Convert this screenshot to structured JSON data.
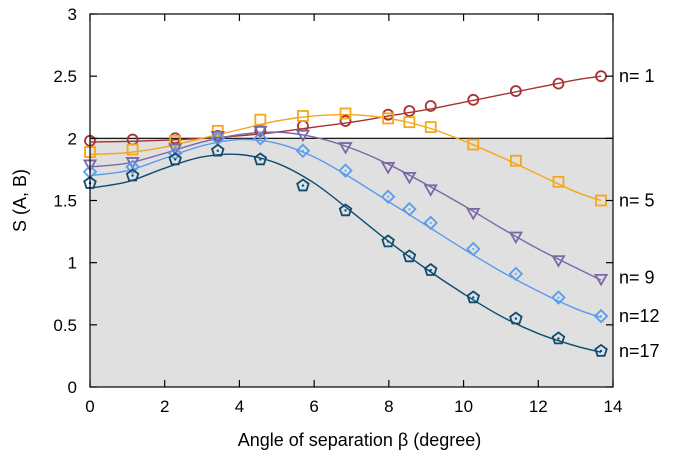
{
  "chart_data": {
    "type": "line",
    "xlabel": "Angle of separation β (degree)",
    "ylabel": "S (A, B)",
    "xlim": [
      0,
      14
    ],
    "ylim": [
      0,
      3
    ],
    "xticks": [
      "0",
      "2",
      "4",
      "6",
      "8",
      "10",
      "12",
      "14"
    ],
    "yticks": [
      "0",
      "0.5",
      "1",
      "1.5",
      "2",
      "2.5",
      "3"
    ],
    "grid": false,
    "legend": "none",
    "shaded_region": {
      "from": 0,
      "to": 2,
      "color": "#e0e0e0"
    },
    "reference_line": 2,
    "series": [
      {
        "name": "n= 1",
        "color": "#a83232",
        "marker": "circle",
        "x": [
          0,
          1.14,
          2.28,
          3.42,
          4.56,
          5.7,
          6.84,
          7.98,
          8.55,
          9.12,
          10.26,
          11.4,
          12.54,
          13.68
        ],
        "values": [
          1.98,
          1.99,
          2.0,
          2.02,
          2.06,
          2.1,
          2.14,
          2.19,
          2.22,
          2.26,
          2.31,
          2.38,
          2.44,
          2.5
        ],
        "curve_x": [
          0,
          1,
          2,
          3,
          4,
          5,
          6,
          7,
          8,
          9,
          10,
          11,
          12,
          13,
          13.68
        ],
        "curve_y": [
          1.97,
          1.975,
          1.985,
          2.0,
          2.02,
          2.05,
          2.09,
          2.13,
          2.18,
          2.23,
          2.29,
          2.35,
          2.41,
          2.47,
          2.5
        ]
      },
      {
        "name": "n= 5",
        "color": "#f4a71c",
        "marker": "square",
        "x": [
          0,
          1.14,
          2.28,
          3.42,
          4.56,
          5.7,
          6.84,
          7.98,
          8.55,
          9.12,
          10.26,
          11.4,
          12.54,
          13.68
        ],
        "values": [
          1.89,
          1.91,
          1.98,
          2.06,
          2.15,
          2.18,
          2.2,
          2.16,
          2.13,
          2.09,
          1.95,
          1.82,
          1.65,
          1.5
        ],
        "curve_x": [
          0,
          1,
          2,
          3,
          4,
          5,
          6,
          7,
          8,
          9,
          10,
          11,
          12,
          13,
          13.68
        ],
        "curve_y": [
          1.87,
          1.885,
          1.93,
          2.0,
          2.07,
          2.14,
          2.18,
          2.19,
          2.16,
          2.09,
          1.98,
          1.85,
          1.71,
          1.57,
          1.5
        ]
      },
      {
        "name": "n= 9",
        "color": "#7b68a8",
        "marker": "triangle-down",
        "x": [
          0,
          1.14,
          2.28,
          3.42,
          4.56,
          5.7,
          6.84,
          7.98,
          8.55,
          9.12,
          10.26,
          11.4,
          12.54,
          13.68
        ],
        "values": [
          1.8,
          1.82,
          1.93,
          2.03,
          2.07,
          2.04,
          1.94,
          1.78,
          1.7,
          1.6,
          1.41,
          1.22,
          1.03,
          0.88
        ],
        "curve_x": [
          0,
          1,
          2,
          3,
          4,
          5,
          6,
          7,
          8,
          9,
          10,
          11,
          12,
          13,
          13.68
        ],
        "curve_y": [
          1.77,
          1.8,
          1.88,
          1.97,
          2.03,
          2.05,
          2.01,
          1.92,
          1.79,
          1.63,
          1.46,
          1.28,
          1.11,
          0.96,
          0.86
        ]
      },
      {
        "name": "n=12",
        "color": "#5b9bec",
        "marker": "diamond",
        "x": [
          0,
          1.14,
          2.28,
          3.42,
          4.56,
          5.7,
          6.84,
          7.98,
          8.55,
          9.12,
          10.26,
          11.4,
          12.54,
          13.68
        ],
        "values": [
          1.73,
          1.77,
          1.88,
          2.0,
          2.0,
          1.9,
          1.74,
          1.53,
          1.43,
          1.32,
          1.11,
          0.91,
          0.72,
          0.57
        ],
        "curve_x": [
          0,
          1,
          2,
          3,
          4,
          5,
          6,
          7,
          8,
          9,
          10,
          11,
          12,
          13,
          13.68
        ],
        "curve_y": [
          1.7,
          1.74,
          1.84,
          1.94,
          1.99,
          1.96,
          1.85,
          1.68,
          1.49,
          1.3,
          1.11,
          0.93,
          0.77,
          0.63,
          0.56
        ]
      },
      {
        "name": "n=17",
        "color": "#0f4c70",
        "marker": "pentagon",
        "x": [
          0,
          1.14,
          2.28,
          3.42,
          4.56,
          5.7,
          6.84,
          7.98,
          8.55,
          9.12,
          10.26,
          11.4,
          12.54,
          13.68
        ],
        "values": [
          1.64,
          1.7,
          1.83,
          1.9,
          1.83,
          1.62,
          1.42,
          1.17,
          1.05,
          0.94,
          0.72,
          0.55,
          0.39,
          0.29
        ],
        "curve_x": [
          0,
          1,
          2,
          3,
          4,
          5,
          6,
          7,
          8,
          9,
          10,
          11,
          12,
          13,
          13.68
        ],
        "curve_y": [
          1.6,
          1.65,
          1.76,
          1.85,
          1.87,
          1.8,
          1.64,
          1.41,
          1.17,
          0.95,
          0.75,
          0.57,
          0.43,
          0.33,
          0.28
        ]
      }
    ]
  }
}
